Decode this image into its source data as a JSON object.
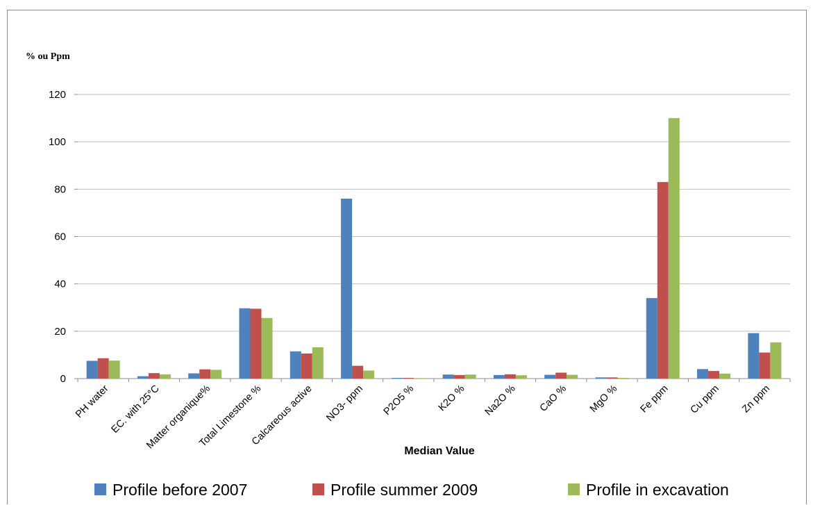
{
  "chart_data": {
    "type": "bar",
    "title": "",
    "ylabel": "% ou Ppm",
    "xlabel": "Median Value",
    "ylim": [
      0,
      120
    ],
    "yticks": [
      0,
      20,
      40,
      60,
      80,
      100,
      120
    ],
    "grid": true,
    "legend_position": "bottom",
    "categories": [
      "PH water",
      "EC. with 25°C",
      "Matter organique%",
      "Total Limestone %",
      "Calcareous active",
      "NO3- ppm",
      "P2O5 %",
      "K2O %",
      "Na2O %",
      "CaO %",
      "MgO %",
      "Fe ppm",
      "Cu ppm",
      "Zn ppm"
    ],
    "series": [
      {
        "name": "Profile before 2007",
        "color": "#4f81bd",
        "values": [
          7.5,
          1.0,
          2.2,
          29.7,
          11.5,
          76,
          0.3,
          1.7,
          1.5,
          1.6,
          0.5,
          34,
          4.0,
          19.2
        ]
      },
      {
        "name": "Profile summer  2009",
        "color": "#c0504d",
        "values": [
          8.6,
          2.3,
          3.9,
          29.5,
          10.6,
          5.4,
          0.3,
          1.5,
          1.8,
          2.5,
          0.5,
          83,
          3.2,
          11.0
        ]
      },
      {
        "name": "Profile in excavation",
        "color": "#9bbb59",
        "values": [
          7.6,
          1.8,
          3.7,
          25.6,
          13.2,
          3.4,
          0.2,
          1.7,
          1.4,
          1.6,
          0.3,
          110,
          2.1,
          15.3
        ]
      }
    ]
  }
}
